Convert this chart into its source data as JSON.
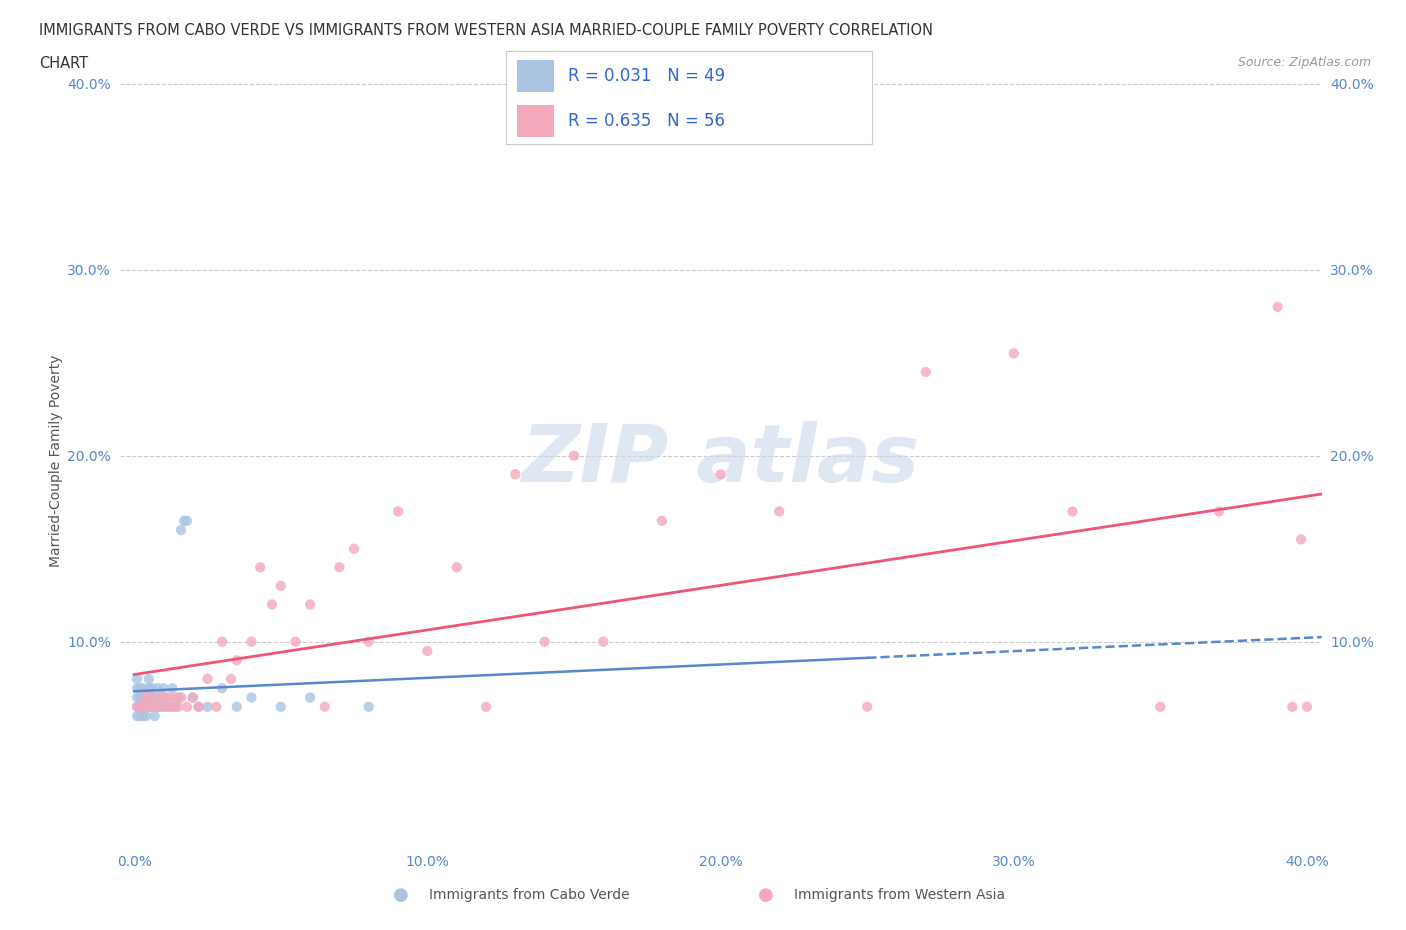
{
  "title_line1": "IMMIGRANTS FROM CABO VERDE VS IMMIGRANTS FROM WESTERN ASIA MARRIED-COUPLE FAMILY POVERTY CORRELATION",
  "title_line2": "CHART",
  "source_text": "Source: ZipAtlas.com",
  "ylabel": "Married-Couple Family Poverty",
  "xlim": [
    -0.005,
    0.405
  ],
  "ylim": [
    -0.01,
    0.405
  ],
  "x_ticks": [
    0.0,
    0.1,
    0.2,
    0.3,
    0.4
  ],
  "y_ticks": [
    0.0,
    0.1,
    0.2,
    0.3,
    0.4
  ],
  "x_tick_labels": [
    "0.0%",
    "10.0%",
    "20.0%",
    "30.0%",
    "40.0%"
  ],
  "y_tick_labels_left": [
    "",
    "10.0%",
    "20.0%",
    "30.0%",
    "40.0%"
  ],
  "y_tick_labels_right": [
    "",
    "10.0%",
    "20.0%",
    "30.0%",
    "40.0%"
  ],
  "cabo_verde_color": "#aac4e2",
  "western_asia_color": "#f5a8bc",
  "cabo_verde_line_color": "#5588cc",
  "western_asia_line_color": "#ee5577",
  "cabo_verde_R": 0.031,
  "cabo_verde_N": 49,
  "western_asia_R": 0.635,
  "western_asia_N": 56,
  "background_color": "#ffffff",
  "grid_color": "#dddddd",
  "cabo_verde_x": [
    0.001,
    0.001,
    0.001,
    0.001,
    0.001,
    0.002,
    0.002,
    0.002,
    0.002,
    0.003,
    0.003,
    0.003,
    0.003,
    0.004,
    0.004,
    0.004,
    0.005,
    0.005,
    0.005,
    0.005,
    0.006,
    0.006,
    0.006,
    0.007,
    0.007,
    0.007,
    0.008,
    0.008,
    0.009,
    0.009,
    0.01,
    0.01,
    0.011,
    0.012,
    0.013,
    0.014,
    0.015,
    0.016,
    0.017,
    0.018,
    0.02,
    0.022,
    0.025,
    0.03,
    0.035,
    0.04,
    0.05,
    0.06,
    0.08
  ],
  "cabo_verde_y": [
    0.07,
    0.075,
    0.08,
    0.065,
    0.06,
    0.07,
    0.075,
    0.065,
    0.06,
    0.07,
    0.075,
    0.065,
    0.06,
    0.07,
    0.065,
    0.06,
    0.08,
    0.075,
    0.07,
    0.065,
    0.075,
    0.07,
    0.065,
    0.07,
    0.065,
    0.06,
    0.075,
    0.065,
    0.07,
    0.065,
    0.075,
    0.065,
    0.07,
    0.065,
    0.075,
    0.065,
    0.07,
    0.16,
    0.165,
    0.165,
    0.07,
    0.065,
    0.065,
    0.075,
    0.065,
    0.07,
    0.065,
    0.07,
    0.065
  ],
  "western_asia_x": [
    0.001,
    0.002,
    0.003,
    0.004,
    0.005,
    0.005,
    0.006,
    0.007,
    0.008,
    0.009,
    0.01,
    0.011,
    0.012,
    0.013,
    0.014,
    0.015,
    0.016,
    0.018,
    0.02,
    0.022,
    0.025,
    0.028,
    0.03,
    0.033,
    0.035,
    0.04,
    0.043,
    0.047,
    0.05,
    0.055,
    0.06,
    0.065,
    0.07,
    0.075,
    0.08,
    0.09,
    0.1,
    0.11,
    0.12,
    0.13,
    0.14,
    0.15,
    0.16,
    0.18,
    0.2,
    0.22,
    0.25,
    0.27,
    0.3,
    0.32,
    0.35,
    0.37,
    0.39,
    0.395,
    0.398,
    0.4
  ],
  "western_asia_y": [
    0.065,
    0.065,
    0.065,
    0.07,
    0.07,
    0.065,
    0.07,
    0.065,
    0.065,
    0.07,
    0.07,
    0.065,
    0.07,
    0.065,
    0.07,
    0.065,
    0.07,
    0.065,
    0.07,
    0.065,
    0.08,
    0.065,
    0.1,
    0.08,
    0.09,
    0.1,
    0.14,
    0.12,
    0.13,
    0.1,
    0.12,
    0.065,
    0.14,
    0.15,
    0.1,
    0.17,
    0.095,
    0.14,
    0.065,
    0.19,
    0.1,
    0.2,
    0.1,
    0.165,
    0.19,
    0.17,
    0.065,
    0.245,
    0.255,
    0.17,
    0.065,
    0.17,
    0.28,
    0.065,
    0.155,
    0.065
  ]
}
